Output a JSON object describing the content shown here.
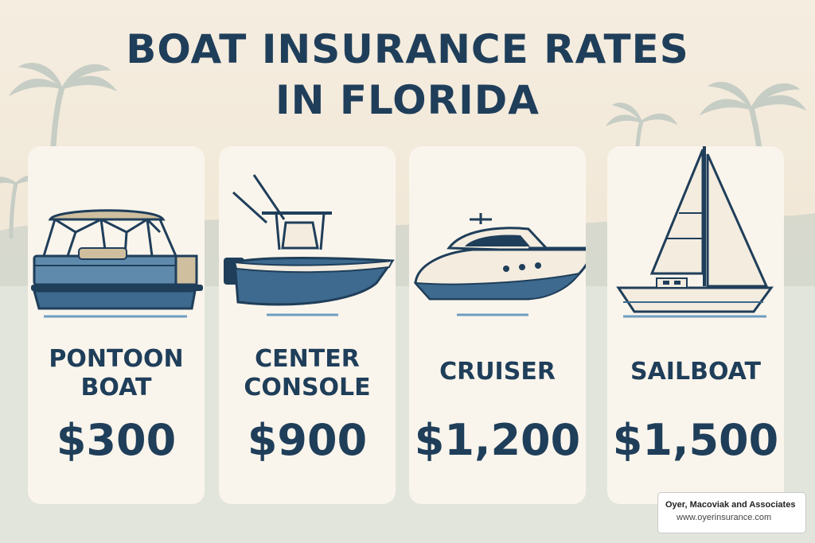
{
  "title_lines": [
    "BOAT INSURANCE RATES",
    "IN FLORIDA"
  ],
  "cards": [
    {
      "name_lines": [
        "PONTOON",
        "BOAT"
      ],
      "price": "$300",
      "icon": "pontoon-boat-icon"
    },
    {
      "name_lines": [
        "CENTER",
        "CONSOLE"
      ],
      "price": "$900",
      "icon": "center-console-boat-icon"
    },
    {
      "name_lines": [
        "CRUISER"
      ],
      "price": "$1,200",
      "icon": "cruiser-yacht-icon"
    },
    {
      "name_lines": [
        "SAILBOAT"
      ],
      "price": "$1,500",
      "icon": "sailboat-icon"
    }
  ],
  "credit": {
    "company": "Oyer, Macoviak and Associates",
    "website": "www.oyerinsurance.com"
  },
  "colors": {
    "heading": "#1f3e5a",
    "boat_blue": "#3d6a8e",
    "card": "#faf5ec",
    "canopy": "#cfbf9f",
    "water_line": "#6e9dc0"
  }
}
